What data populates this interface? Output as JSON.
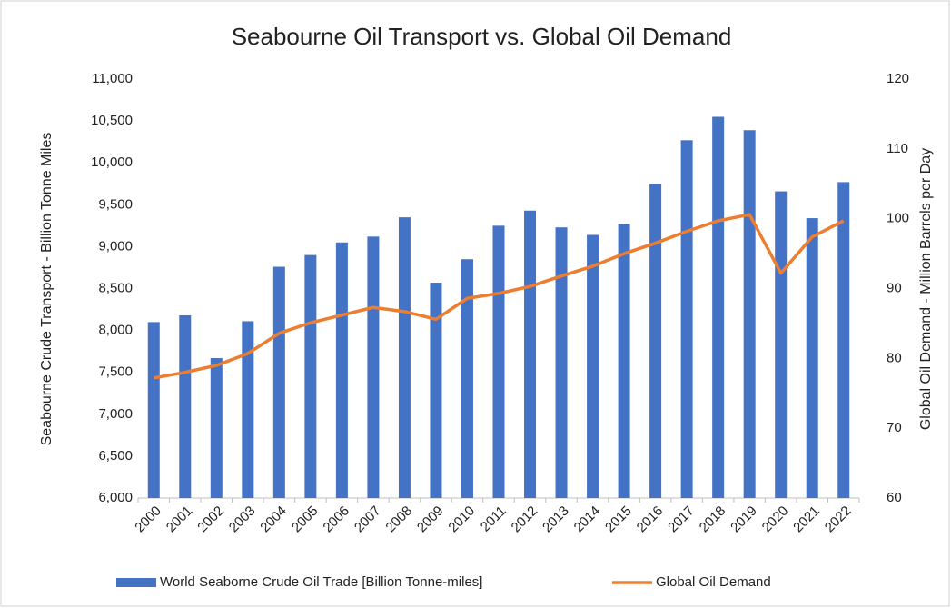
{
  "chart_data": {
    "type": "bar",
    "title": "Seabourne Oil Transport vs. Global Oil Demand",
    "y_label": "Seabourne  Crude  Transport  -  Billion Tonne  Miles",
    "y2_label": "Global Oil Demand - Million Barrels per Day",
    "categories": [
      "2000",
      "2001",
      "2002",
      "2003",
      "2004",
      "2005",
      "2006",
      "2007",
      "2008",
      "2009",
      "2010",
      "2011",
      "2012",
      "2013",
      "2014",
      "2015",
      "2016",
      "2017",
      "2018",
      "2019",
      "2020",
      "2021",
      "2022"
    ],
    "series": [
      {
        "name": "World Seaborne Crude Oil Trade [Billion Tonne-miles]",
        "type": "bar",
        "color": "#4472c4",
        "values": [
          8100,
          8180,
          7670,
          8110,
          8760,
          8900,
          9050,
          9120,
          9350,
          8570,
          8850,
          9250,
          9430,
          9230,
          9140,
          9270,
          9750,
          10270,
          10550,
          10390,
          9660,
          9340,
          9770
        ]
      },
      {
        "name": "Global Oil Demand",
        "type": "line",
        "axis": "y2",
        "color": "#ed7d31",
        "values": [
          77.2,
          78.0,
          79.0,
          80.7,
          83.6,
          85.1,
          86.2,
          87.3,
          86.7,
          85.6,
          88.6,
          89.3,
          90.3,
          91.8,
          93.2,
          95.0,
          96.5,
          98.2,
          99.7,
          100.6,
          92.2,
          97.4,
          99.7
        ]
      }
    ],
    "ylim": [
      6000,
      11000
    ],
    "yticks": [
      {
        "value": 6000,
        "label": "6,000"
      },
      {
        "value": 6500,
        "label": "6,500"
      },
      {
        "value": 7000,
        "label": "7,000"
      },
      {
        "value": 7500,
        "label": "7,500"
      },
      {
        "value": 8000,
        "label": "8,000"
      },
      {
        "value": 8500,
        "label": "8,500"
      },
      {
        "value": 9000,
        "label": "9,000"
      },
      {
        "value": 9500,
        "label": "9,500"
      },
      {
        "value": 10000,
        "label": "10,000"
      },
      {
        "value": 10500,
        "label": "10,500"
      },
      {
        "value": 11000,
        "label": "11,000"
      }
    ],
    "y2lim": [
      60,
      120
    ],
    "y2ticks": [
      60,
      70,
      80,
      90,
      100,
      110,
      120
    ],
    "grid": false,
    "legend": "bottom"
  }
}
